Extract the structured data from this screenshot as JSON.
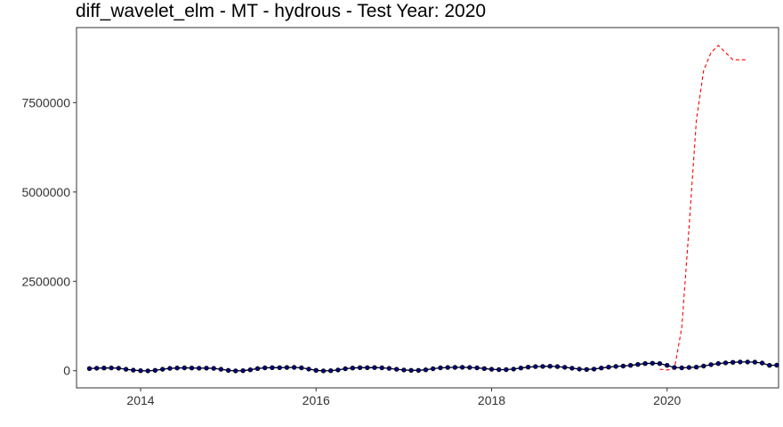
{
  "chart_data": {
    "type": "line",
    "title": "diff_wavelet_elm - MT - hydrous - Test Year: 2020",
    "xlabel": "",
    "ylabel": "",
    "xlim": [
      2013.27,
      2021.27
    ],
    "ylim": [
      -480000,
      9600000
    ],
    "x_ticks": [
      2014,
      2016,
      2018,
      2020
    ],
    "x_tick_labels": [
      "2014",
      "2016",
      "2018",
      "2020"
    ],
    "y_ticks": [
      0,
      2500000,
      5000000,
      7500000
    ],
    "y_tick_labels": [
      "0",
      "2500000",
      "5000000",
      "7500000"
    ],
    "grid": false,
    "legend": "none",
    "series": [
      {
        "role": "actual",
        "color": "#000000",
        "point_color": "#00008b",
        "style": "solid",
        "markers": true,
        "x_start": "2013-06",
        "interval": "month",
        "values": [
          60000,
          70000,
          75000,
          78000,
          70000,
          40000,
          15000,
          0,
          -5000,
          10000,
          40000,
          65000,
          75000,
          80000,
          75000,
          70000,
          72000,
          65000,
          40000,
          10000,
          -5000,
          0,
          25000,
          60000,
          80000,
          85000,
          85000,
          90000,
          92000,
          80000,
          45000,
          10000,
          -5000,
          0,
          20000,
          55000,
          75000,
          85000,
          85000,
          88000,
          80000,
          65000,
          40000,
          20000,
          10000,
          10000,
          25000,
          55000,
          80000,
          90000,
          92000,
          95000,
          90000,
          80000,
          60000,
          40000,
          30000,
          30000,
          45000,
          75000,
          100000,
          115000,
          120000,
          125000,
          115000,
          95000,
          70000,
          45000,
          35000,
          45000,
          75000,
          100000,
          120000,
          130000,
          150000,
          175000,
          200000,
          210000,
          200000,
          150000,
          90000,
          80000,
          90000,
          100000,
          130000,
          170000,
          200000,
          220000,
          235000,
          245000,
          245000,
          240000,
          215000,
          150000,
          155000
        ]
      },
      {
        "role": "predicted",
        "color": "#ff0000",
        "style": "dashed",
        "markers": false,
        "x": [
          "2019-12",
          "2020-01",
          "2020-02",
          "2020-03",
          "2020-04",
          "2020-05",
          "2020-06",
          "2020-07",
          "2020-08",
          "2020-09",
          "2020-10",
          "2020-11",
          "2020-12"
        ],
        "values": [
          40000,
          20000,
          60000,
          1200000,
          4000000,
          7000000,
          8400000,
          8900000,
          9100000,
          8900000,
          8700000,
          8700000,
          8700000
        ]
      }
    ]
  }
}
